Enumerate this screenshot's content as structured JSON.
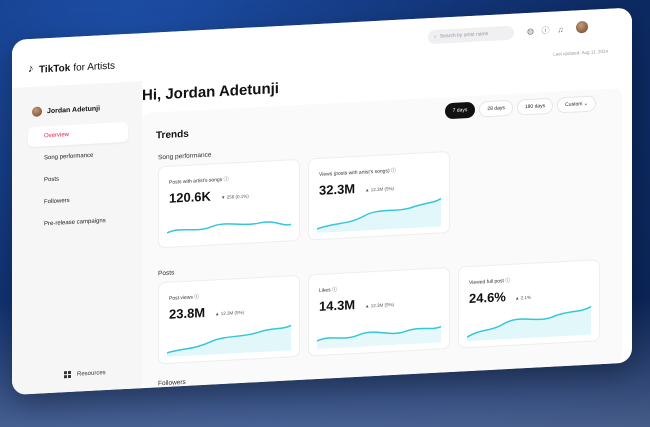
{
  "app": {
    "brand": "TikTok",
    "brand_suffix": "for Artists"
  },
  "search": {
    "placeholder": "Search by artist name"
  },
  "last_updated": "Last updated: Aug 11, 2024",
  "user": {
    "name": "Jordan Adetunji"
  },
  "nav": {
    "items": [
      {
        "label": "Overview",
        "active": true
      },
      {
        "label": "Song performance"
      },
      {
        "label": "Posts"
      },
      {
        "label": "Followers"
      },
      {
        "label": "Pre-release campaigns"
      }
    ],
    "resources": "Resources"
  },
  "greeting": "Hi, Jordan Adetunji",
  "trends": {
    "title": "Trends",
    "ranges": [
      "7 days",
      "28 days",
      "180 days",
      "Custom"
    ],
    "selected_range": "7 days"
  },
  "song_performance": {
    "title": "Song performance",
    "cards": [
      {
        "label": "Posts with artist's songs",
        "value": "120.6K",
        "delta": "▼ 256 (0.1%)",
        "trend": "down"
      },
      {
        "label": "Views (posts with artist's songs)",
        "value": "32.3M",
        "delta": "▲ 12.3M (5%)",
        "trend": "up"
      }
    ]
  },
  "posts": {
    "title": "Posts",
    "cards": [
      {
        "label": "Post views",
        "value": "23.8M",
        "delta": "▲ 12.3M (5%)",
        "trend": "up"
      },
      {
        "label": "Likes",
        "value": "14.3M",
        "delta": "▲ 12.3M (5%)",
        "trend": "up"
      },
      {
        "label": "Viewed full post",
        "value": "24.6%",
        "delta": "▲ 2.1%",
        "trend": "up"
      }
    ]
  },
  "followers": {
    "title": "Followers"
  },
  "colors": {
    "accent": "#e8174f",
    "sparkline": "#35c6d8",
    "up": "#2a9a5a"
  }
}
